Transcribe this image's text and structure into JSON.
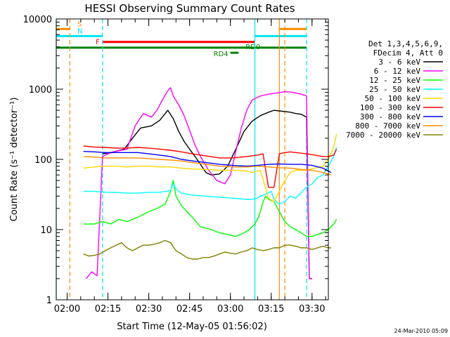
{
  "chart_data": {
    "type": "line",
    "title": "HESSI Observing Summary Count Rates",
    "xlabel": "Start Time (12-May-05 01:56:02)",
    "ylabel": "Count Rate (s⁻¹ detector⁻¹)",
    "yscale": "log",
    "ylim": [
      1,
      10000
    ],
    "xlim_minutes": [
      0,
      100
    ],
    "x_ticks": [
      "02:00",
      "02:15",
      "02:30",
      "02:45",
      "03:00",
      "03:15",
      "03:30"
    ],
    "y_ticks": [
      "1",
      "10",
      "100",
      "1000",
      "10000"
    ],
    "legend_header": [
      "Det 1,3,4,5,6,9,",
      "FDecim 4, Att 0"
    ],
    "legend_position": "right",
    "series": [
      {
        "name": "3 - 6 keV",
        "color": "#000000",
        "x": [
          17,
          20,
          25,
          28,
          31,
          35,
          38,
          41,
          43,
          45,
          47,
          49,
          51,
          53,
          55,
          57,
          60,
          63,
          66,
          69,
          72,
          75,
          78,
          80,
          82,
          84,
          86,
          88,
          90,
          92,
          93,
          94
        ],
        "y": [
          120,
          125,
          140,
          200,
          280,
          300,
          360,
          500,
          380,
          250,
          180,
          140,
          110,
          85,
          65,
          60,
          62,
          80,
          140,
          250,
          350,
          420,
          470,
          500,
          490,
          480,
          470,
          450,
          440,
          400,
          2,
          2
        ]
      },
      {
        "name": "6 - 12 keV",
        "color": "#ff00ff",
        "x": [
          11,
          13,
          15,
          17,
          19,
          22,
          26,
          29,
          32,
          35,
          37,
          39,
          41,
          42,
          43,
          45,
          47,
          49,
          51,
          53,
          56,
          59,
          62,
          64,
          66,
          68,
          70,
          72,
          75,
          78,
          81,
          84,
          87,
          90,
          92,
          93,
          94
        ],
        "y": [
          2,
          2.5,
          2.2,
          110,
          120,
          130,
          140,
          300,
          450,
          400,
          500,
          700,
          950,
          1050,
          800,
          600,
          420,
          260,
          160,
          110,
          70,
          50,
          45,
          60,
          130,
          280,
          500,
          700,
          800,
          850,
          880,
          920,
          900,
          850,
          800,
          2,
          2
        ]
      },
      {
        "name": "12 - 25 keV",
        "color": "#00ff00",
        "x": [
          10,
          14,
          17,
          20,
          23,
          26,
          30,
          34,
          37,
          40,
          42,
          43,
          44,
          46,
          48,
          50,
          53,
          57,
          60,
          63,
          66,
          69,
          71,
          72,
          73,
          74,
          75,
          76,
          77,
          78,
          80,
          82,
          84,
          86,
          88,
          90,
          92,
          94,
          96,
          98,
          100,
          102,
          103
        ],
        "y": [
          12,
          12,
          13,
          12,
          14,
          13,
          15,
          18,
          20,
          23,
          35,
          50,
          30,
          22,
          18,
          15,
          11,
          10,
          9,
          8.5,
          8,
          9,
          10,
          11,
          12,
          14,
          18,
          25,
          30,
          27,
          25,
          18,
          13,
          11,
          10,
          9,
          8,
          8,
          8.5,
          9,
          10,
          12,
          14
        ]
      },
      {
        "name": "25 - 50 keV",
        "color": "#00ffff",
        "x": [
          10,
          14,
          18,
          22,
          26,
          30,
          34,
          38,
          42,
          43,
          44,
          46,
          50,
          55,
          60,
          65,
          70,
          72,
          74,
          75,
          77,
          79,
          80,
          82,
          84,
          86,
          88,
          92,
          94,
          96,
          98,
          100,
          102,
          103
        ],
        "y": [
          35,
          35,
          34,
          34,
          33,
          33,
          34,
          34,
          36,
          45,
          38,
          33,
          31,
          30,
          29,
          28,
          27,
          27,
          28,
          30,
          32,
          35,
          27,
          23,
          25,
          30,
          28,
          40,
          45,
          55,
          60,
          80,
          110,
          150
        ]
      },
      {
        "name": "50 - 100 keV",
        "color": "#ffd700",
        "x": [
          10,
          14,
          18,
          22,
          26,
          30,
          34,
          38,
          42,
          46,
          50,
          55,
          60,
          65,
          70,
          72,
          75,
          78,
          80,
          82,
          84,
          86,
          88,
          92,
          95,
          98,
          100,
          102,
          103
        ],
        "y": [
          75,
          78,
          80,
          80,
          78,
          80,
          80,
          78,
          78,
          75,
          73,
          72,
          70,
          70,
          68,
          65,
          70,
          28,
          25,
          35,
          50,
          65,
          70,
          70,
          75,
          80,
          100,
          150,
          230
        ]
      },
      {
        "name": "100 - 300 keV",
        "color": "#ff0000",
        "x": [
          10,
          14,
          18,
          22,
          26,
          30,
          34,
          38,
          42,
          46,
          50,
          55,
          60,
          65,
          70,
          74,
          76,
          78,
          80,
          82,
          84,
          86,
          88,
          92,
          95,
          98,
          100,
          102,
          103
        ],
        "y": [
          155,
          150,
          148,
          145,
          145,
          148,
          145,
          140,
          135,
          128,
          120,
          112,
          105,
          105,
          110,
          115,
          120,
          40,
          40,
          120,
          125,
          128,
          125,
          120,
          115,
          110,
          110,
          115,
          140
        ]
      },
      {
        "name": "300 - 800 keV",
        "color": "#0000ff",
        "x": [
          10,
          14,
          18,
          22,
          26,
          30,
          34,
          38,
          42,
          46,
          50,
          55,
          60,
          65,
          70,
          74,
          78,
          82,
          86,
          90,
          94,
          98,
          101
        ],
        "y": [
          130,
          128,
          125,
          125,
          125,
          125,
          120,
          115,
          110,
          100,
          95,
          90,
          85,
          82,
          80,
          82,
          85,
          86,
          85,
          85,
          82,
          75,
          65
        ]
      },
      {
        "name": "800 - 7000 keV",
        "color": "#ff8c00",
        "x": [
          10,
          14,
          18,
          22,
          26,
          30,
          34,
          38,
          42,
          46,
          50,
          55,
          60,
          65,
          70,
          74,
          78,
          82,
          86,
          90,
          94,
          98,
          101
        ],
        "y": [
          110,
          108,
          105,
          105,
          105,
          105,
          102,
          100,
          98,
          95,
          90,
          85,
          80,
          78,
          78,
          80,
          78,
          76,
          75,
          72,
          70,
          65,
          60
        ]
      },
      {
        "name": "7000 - 20000 keV",
        "color": "#808000",
        "x": [
          10,
          12,
          14,
          16,
          18,
          20,
          22,
          24,
          26,
          28,
          30,
          32,
          34,
          36,
          38,
          40,
          42,
          44,
          46,
          48,
          50,
          52,
          54,
          56,
          58,
          60,
          62,
          64,
          66,
          68,
          70,
          72,
          74,
          76,
          78,
          80,
          82,
          84,
          86,
          88,
          90,
          92,
          94,
          96,
          98,
          100,
          101
        ],
        "y": [
          4.5,
          4.2,
          4.3,
          4.5,
          5,
          5.5,
          6,
          6.5,
          5.5,
          5,
          5.5,
          6,
          6,
          6.2,
          6.5,
          7,
          6.5,
          5,
          4.5,
          4,
          3.8,
          3.8,
          4,
          4,
          4.2,
          4.5,
          4.8,
          4.6,
          4.5,
          4.8,
          5,
          5.5,
          5.2,
          5,
          5.2,
          5.5,
          5.5,
          6,
          6,
          5.8,
          5.5,
          5.5,
          5.2,
          5.5,
          5.8,
          5.5,
          5.5
        ]
      }
    ],
    "flag_bars": [
      {
        "label": "S",
        "color": "#ff8c00",
        "y": 7200,
        "x_start": 0,
        "x_end": 5
      },
      {
        "label": "",
        "color": "#ff8c00",
        "y": 7200,
        "x_start": 82,
        "x_end": 92
      },
      {
        "label": "N",
        "color": "#00e5ee",
        "y": 5700,
        "x_start": 0,
        "x_end": 17
      },
      {
        "label": "",
        "color": "#00e5ee",
        "y": 5700,
        "x_start": 73,
        "x_end": 92
      },
      {
        "label": "F",
        "color": "#ff0000",
        "y": 4700,
        "x_start": 17,
        "x_end": 73
      },
      {
        "label": "RD0",
        "color": "#008000",
        "y": 3900,
        "x_start": 0,
        "x_end": 92
      },
      {
        "label": "RD4",
        "color": "#008000",
        "y": 3300,
        "x_start": 64,
        "x_end": 67
      }
    ],
    "vertical_markers": [
      {
        "color": "#00e5ee",
        "x": 0,
        "style": "solid"
      },
      {
        "color": "#ff8c00",
        "x": 5,
        "style": "dashed"
      },
      {
        "color": "#00e5ee",
        "x": 17,
        "style": "dashed"
      },
      {
        "color": "#00e5ee",
        "x": 73,
        "style": "solid"
      },
      {
        "color": "#ff8c00",
        "x": 82,
        "style": "solid"
      },
      {
        "color": "#ff8c00",
        "x": 84,
        "style": "dashed"
      },
      {
        "color": "#00e5ee",
        "x": 92,
        "style": "dashed"
      }
    ],
    "footer_stamp": "24-Mar-2010 05:09"
  }
}
